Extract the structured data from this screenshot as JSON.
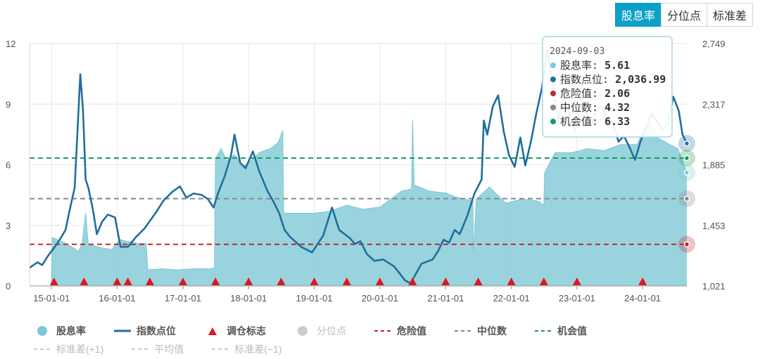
{
  "tabs": [
    {
      "label": "股息率",
      "active": true
    },
    {
      "label": "分位点",
      "active": false
    },
    {
      "label": "标准差",
      "active": false
    }
  ],
  "colors": {
    "area_fill": "#93d2dc",
    "area_line": "#7cc8d4",
    "index_line": "#1f6e9c",
    "danger": "#c0282d",
    "median": "#888888",
    "opportunity": "#1e9a5a",
    "marker": "#e3141e",
    "grid": "#e6e6e6"
  },
  "tooltip": {
    "date": "2024-09-03",
    "rows": [
      {
        "label": "股息率",
        "value": "5.61",
        "color": "#7cc8d4"
      },
      {
        "label": "指数点位",
        "value": "2,036.99",
        "color": "#1f6e9c"
      },
      {
        "label": "危险值",
        "value": "2.06",
        "color": "#c0282d"
      },
      {
        "label": "中位数",
        "value": "4.32",
        "color": "#888888"
      },
      {
        "label": "机会值",
        "value": "6.33",
        "color": "#1e9a5a"
      }
    ]
  },
  "legend": [
    [
      {
        "name": "股息率",
        "sym": "circle",
        "color": "#7cc8d4",
        "dim": false
      },
      {
        "name": "指数点位",
        "sym": "line",
        "color": "#1f6e9c",
        "dim": false
      },
      {
        "name": "调仓标志",
        "sym": "triangle",
        "color": "#e3141e",
        "dim": false
      },
      {
        "name": "分位点",
        "sym": "circle",
        "color": "#cccccc",
        "dim": true
      },
      {
        "name": "危险值",
        "sym": "dash",
        "color": "#c0282d",
        "dim": false
      },
      {
        "name": "中位数",
        "sym": "dash",
        "color": "#888888",
        "dim": false
      },
      {
        "name": "机会值",
        "sym": "dash",
        "color": "#1e9a5a",
        "dim": false
      }
    ],
    [
      {
        "name": "标准差(+1)",
        "sym": "dash",
        "color": "#cccccc",
        "dim": true
      },
      {
        "name": "平均值",
        "sym": "dash",
        "color": "#cccccc",
        "dim": true
      },
      {
        "name": "标准差(−1)",
        "sym": "dash",
        "color": "#cccccc",
        "dim": true
      }
    ]
  ],
  "chart_data": {
    "type": "line",
    "x_range": [
      "2014-09-01",
      "2024-09-03"
    ],
    "x_ticks": [
      "15-01-01",
      "16-01-01",
      "17-01-01",
      "18-01-01",
      "19-01-01",
      "20-01-01",
      "21-01-01",
      "22-01-01",
      "23-01-01",
      "24-01-01"
    ],
    "y_left": {
      "min": 0,
      "max": 12,
      "ticks": [
        "0",
        "3",
        "6",
        "9",
        "12"
      ]
    },
    "y_right": {
      "min": 1021,
      "max": 2749,
      "ticks": [
        "1,021",
        "1,453",
        "1,885",
        "2,317",
        "2,749"
      ]
    },
    "grid": true,
    "legend_position": "bottom",
    "reference_lines": [
      {
        "name": "危险值",
        "value": 2.06
      },
      {
        "name": "中位数",
        "value": 4.32
      },
      {
        "name": "机会值",
        "value": 6.33
      }
    ],
    "dividend_yield": [
      [
        "2015-01-01",
        0.0
      ],
      [
        "2015-01-05",
        2.4
      ],
      [
        "2015-03-01",
        2.2
      ],
      [
        "2015-05-01",
        1.9
      ],
      [
        "2015-06-01",
        1.7
      ],
      [
        "2015-06-20",
        2.1
      ],
      [
        "2015-07-10",
        3.6
      ],
      [
        "2015-07-25",
        2.0
      ],
      [
        "2015-08-20",
        2.0
      ],
      [
        "2015-10-01",
        1.9
      ],
      [
        "2015-12-01",
        1.8
      ],
      [
        "2016-01-15",
        2.3
      ],
      [
        "2016-03-01",
        2.2
      ],
      [
        "2016-05-01",
        2.1
      ],
      [
        "2016-06-10",
        2.1
      ],
      [
        "2016-06-20",
        0.8
      ],
      [
        "2016-09-01",
        0.85
      ],
      [
        "2016-12-01",
        0.8
      ],
      [
        "2017-03-01",
        0.85
      ],
      [
        "2017-06-01",
        0.85
      ],
      [
        "2017-06-25",
        0.9
      ],
      [
        "2017-07-01",
        6.3
      ],
      [
        "2017-08-01",
        6.8
      ],
      [
        "2017-09-01",
        6.2
      ],
      [
        "2017-10-15",
        6.5
      ],
      [
        "2017-12-01",
        5.9
      ],
      [
        "2018-01-15",
        6.2
      ],
      [
        "2018-03-01",
        6.6
      ],
      [
        "2018-05-01",
        6.8
      ],
      [
        "2018-06-15",
        7.1
      ],
      [
        "2018-07-10",
        7.7
      ],
      [
        "2018-07-15",
        3.6
      ],
      [
        "2018-10-01",
        3.6
      ],
      [
        "2019-01-01",
        3.6
      ],
      [
        "2019-04-01",
        3.7
      ],
      [
        "2019-07-01",
        4.0
      ],
      [
        "2019-10-01",
        3.8
      ],
      [
        "2020-01-01",
        3.9
      ],
      [
        "2020-03-01",
        4.3
      ],
      [
        "2020-05-01",
        4.7
      ],
      [
        "2020-06-25",
        4.8
      ],
      [
        "2020-07-01",
        8.2
      ],
      [
        "2020-07-10",
        5.0
      ],
      [
        "2020-10-01",
        4.7
      ],
      [
        "2021-01-01",
        4.6
      ],
      [
        "2021-03-01",
        4.4
      ],
      [
        "2021-06-01",
        4.2
      ],
      [
        "2021-06-05",
        1.6
      ],
      [
        "2021-06-20",
        4.3
      ],
      [
        "2021-09-01",
        4.9
      ],
      [
        "2021-12-01",
        4.1
      ],
      [
        "2022-03-01",
        4.3
      ],
      [
        "2022-06-01",
        4.2
      ],
      [
        "2022-07-01",
        4.0
      ],
      [
        "2022-07-05",
        5.6
      ],
      [
        "2022-09-01",
        6.6
      ],
      [
        "2022-12-01",
        6.6
      ],
      [
        "2023-03-01",
        6.8
      ],
      [
        "2023-06-01",
        6.7
      ],
      [
        "2023-09-01",
        7.0
      ],
      [
        "2023-12-01",
        7.0
      ],
      [
        "2024-02-01",
        8.2
      ],
      [
        "2024-04-01",
        7.3
      ],
      [
        "2024-06-01",
        7.0
      ],
      [
        "2024-07-15",
        6.8
      ],
      [
        "2024-09-03",
        5.61
      ]
    ],
    "index_level": [
      [
        "2014-09-01",
        1150
      ],
      [
        "2014-10-15",
        1190
      ],
      [
        "2014-11-10",
        1170
      ],
      [
        "2014-12-15",
        1240
      ],
      [
        "2015-01-20",
        1300
      ],
      [
        "2015-02-20",
        1360
      ],
      [
        "2015-03-20",
        1420
      ],
      [
        "2015-04-15",
        1580
      ],
      [
        "2015-05-10",
        1720
      ],
      [
        "2015-06-10",
        2530
      ],
      [
        "2015-06-25",
        2280
      ],
      [
        "2015-07-10",
        1780
      ],
      [
        "2015-07-25",
        1720
      ],
      [
        "2015-08-20",
        1560
      ],
      [
        "2015-09-10",
        1390
      ],
      [
        "2015-10-10",
        1480
      ],
      [
        "2015-11-10",
        1530
      ],
      [
        "2015-12-20",
        1510
      ],
      [
        "2016-01-20",
        1300
      ],
      [
        "2016-03-01",
        1300
      ],
      [
        "2016-04-15",
        1370
      ],
      [
        "2016-06-01",
        1430
      ],
      [
        "2016-08-01",
        1540
      ],
      [
        "2016-09-15",
        1630
      ],
      [
        "2016-11-01",
        1690
      ],
      [
        "2016-12-15",
        1730
      ],
      [
        "2017-01-20",
        1650
      ],
      [
        "2017-03-01",
        1680
      ],
      [
        "2017-04-15",
        1670
      ],
      [
        "2017-05-20",
        1640
      ],
      [
        "2017-06-20",
        1580
      ],
      [
        "2017-07-15",
        1680
      ],
      [
        "2017-08-20",
        1800
      ],
      [
        "2017-09-25",
        1950
      ],
      [
        "2017-10-15",
        2100
      ],
      [
        "2017-11-15",
        1900
      ],
      [
        "2017-12-15",
        1860
      ],
      [
        "2018-01-25",
        1980
      ],
      [
        "2018-03-01",
        1840
      ],
      [
        "2018-04-15",
        1700
      ],
      [
        "2018-05-20",
        1620
      ],
      [
        "2018-06-20",
        1540
      ],
      [
        "2018-07-20",
        1420
      ],
      [
        "2018-08-20",
        1370
      ],
      [
        "2018-10-20",
        1300
      ],
      [
        "2018-12-20",
        1260
      ],
      [
        "2019-02-20",
        1380
      ],
      [
        "2019-04-10",
        1580
      ],
      [
        "2019-05-20",
        1420
      ],
      [
        "2019-07-20",
        1360
      ],
      [
        "2019-08-15",
        1320
      ],
      [
        "2019-09-15",
        1340
      ],
      [
        "2019-10-20",
        1250
      ],
      [
        "2019-12-01",
        1200
      ],
      [
        "2020-01-20",
        1210
      ],
      [
        "2020-03-20",
        1160
      ],
      [
        "2020-04-20",
        1110
      ],
      [
        "2020-05-20",
        1060
      ],
      [
        "2020-06-20",
        1040
      ],
      [
        "2020-07-20",
        1110
      ],
      [
        "2020-08-20",
        1180
      ],
      [
        "2020-10-20",
        1210
      ],
      [
        "2020-11-20",
        1270
      ],
      [
        "2020-12-20",
        1350
      ],
      [
        "2021-01-20",
        1330
      ],
      [
        "2021-02-20",
        1420
      ],
      [
        "2021-03-20",
        1390
      ],
      [
        "2021-05-01",
        1520
      ],
      [
        "2021-06-10",
        1680
      ],
      [
        "2021-07-20",
        1780
      ],
      [
        "2021-08-01",
        2200
      ],
      [
        "2021-08-20",
        2100
      ],
      [
        "2021-09-20",
        2300
      ],
      [
        "2021-10-20",
        2380
      ],
      [
        "2021-11-20",
        2120
      ],
      [
        "2021-12-20",
        1950
      ],
      [
        "2022-01-20",
        1870
      ],
      [
        "2022-02-20",
        2080
      ],
      [
        "2022-03-20",
        1880
      ],
      [
        "2022-04-20",
        2050
      ],
      [
        "2022-05-20",
        2250
      ],
      [
        "2022-06-20",
        2430
      ],
      [
        "2022-07-20",
        2700
      ],
      [
        "2022-08-20",
        2450
      ],
      [
        "2022-09-20",
        2200
      ],
      [
        "2022-10-20",
        2380
      ],
      [
        "2022-11-20",
        2250
      ],
      [
        "2022-12-20",
        2120
      ],
      [
        "2023-01-20",
        2320
      ],
      [
        "2023-02-20",
        2250
      ],
      [
        "2023-03-20",
        2170
      ],
      [
        "2023-04-20",
        2280
      ],
      [
        "2023-05-20",
        2300
      ],
      [
        "2023-06-20",
        2220
      ],
      [
        "2023-07-20",
        2180
      ],
      [
        "2023-08-20",
        2050
      ],
      [
        "2023-09-20",
        2090
      ],
      [
        "2023-10-20",
        2010
      ],
      [
        "2023-11-20",
        1920
      ],
      [
        "2023-12-20",
        2050
      ],
      [
        "2024-01-20",
        2150
      ],
      [
        "2024-02-20",
        2250
      ],
      [
        "2024-03-20",
        2200
      ],
      [
        "2024-04-20",
        2140
      ],
      [
        "2024-05-20",
        2170
      ],
      [
        "2024-06-20",
        2370
      ],
      [
        "2024-07-20",
        2270
      ],
      [
        "2024-08-10",
        2100
      ],
      [
        "2024-09-03",
        2036.99
      ]
    ],
    "rebalance_markers": [
      "2015-01-15",
      "2015-07-01",
      "2016-01-01",
      "2016-03-01",
      "2016-07-01",
      "2017-01-01",
      "2017-07-01",
      "2018-01-01",
      "2018-07-01",
      "2019-01-01",
      "2019-07-01",
      "2020-01-01",
      "2020-07-01",
      "2021-01-01",
      "2021-07-01",
      "2022-01-01",
      "2022-07-01",
      "2023-01-01",
      "2024-01-01"
    ]
  }
}
